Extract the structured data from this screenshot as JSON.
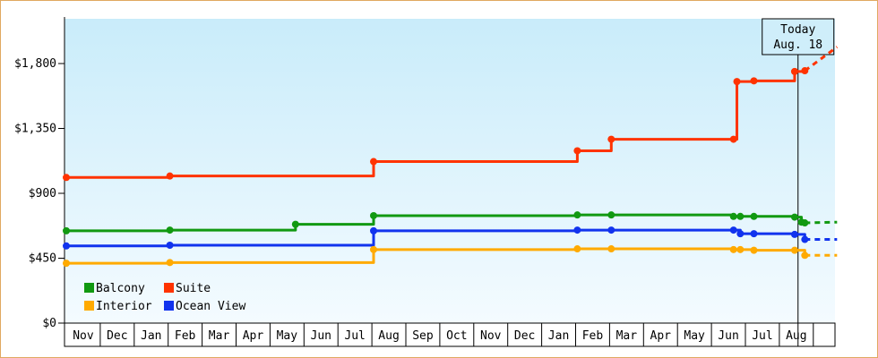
{
  "chart_data": {
    "type": "line",
    "title": "",
    "xlabel": "",
    "ylabel": "",
    "ylim": [
      0,
      2100
    ],
    "y_ticks": [
      "$0",
      "$450",
      "$900",
      "$1,350",
      "$1,800"
    ],
    "y_tick_values": [
      0,
      450,
      900,
      1350,
      1800
    ],
    "x_months": [
      "Nov",
      "Dec",
      "Jan",
      "Feb",
      "Mar",
      "Apr",
      "May",
      "Jun",
      "Jul",
      "Aug",
      "Sep",
      "Oct",
      "Nov",
      "Dec",
      "Jan",
      "Feb",
      "Mar",
      "Apr",
      "May",
      "Jun",
      "Jul",
      "Aug"
    ],
    "x_range_months": [
      0,
      22.7
    ],
    "today_marker": {
      "line1": "Today",
      "line2": "Aug. 18",
      "x": 21.55
    },
    "legend": [
      {
        "name": "Balcony",
        "color": "#119911"
      },
      {
        "name": "Suite",
        "color": "#ff3300"
      },
      {
        "name": "Interior",
        "color": "#ffaa00"
      },
      {
        "name": "Ocean View",
        "color": "#1133ee"
      }
    ],
    "series": [
      {
        "name": "Suite",
        "color": "#ff3300",
        "x": [
          0,
          3.05,
          9.05,
          15.05,
          16.05,
          19.65,
          19.75,
          20.25,
          21.45,
          21.75
        ],
        "y": [
          1010,
          1020,
          1120,
          1195,
          1275,
          1275,
          1675,
          1680,
          1745,
          1750
        ],
        "dashed_to": [
          22.7,
          1915
        ]
      },
      {
        "name": "Balcony",
        "color": "#119911",
        "x": [
          0,
          3.05,
          6.75,
          9.05,
          15.05,
          16.05,
          19.65,
          19.85,
          20.25,
          21.45,
          21.65,
          21.75
        ],
        "y": [
          640,
          645,
          685,
          745,
          750,
          750,
          740,
          740,
          740,
          735,
          700,
          695
        ],
        "dashed_to": [
          22.7,
          700
        ]
      },
      {
        "name": "Ocean View",
        "color": "#1133ee",
        "x": [
          0,
          3.05,
          9.05,
          15.05,
          16.05,
          19.65,
          19.85,
          20.25,
          21.45,
          21.75
        ],
        "y": [
          535,
          540,
          640,
          645,
          645,
          645,
          620,
          620,
          615,
          580
        ],
        "dashed_to": [
          22.7,
          580
        ]
      },
      {
        "name": "Interior",
        "color": "#ffaa00",
        "x": [
          0,
          3.05,
          9.05,
          15.05,
          16.05,
          19.65,
          19.85,
          20.25,
          21.45,
          21.75
        ],
        "y": [
          415,
          420,
          510,
          515,
          515,
          510,
          510,
          505,
          505,
          470
        ],
        "dashed_to": [
          22.7,
          470
        ]
      }
    ]
  }
}
